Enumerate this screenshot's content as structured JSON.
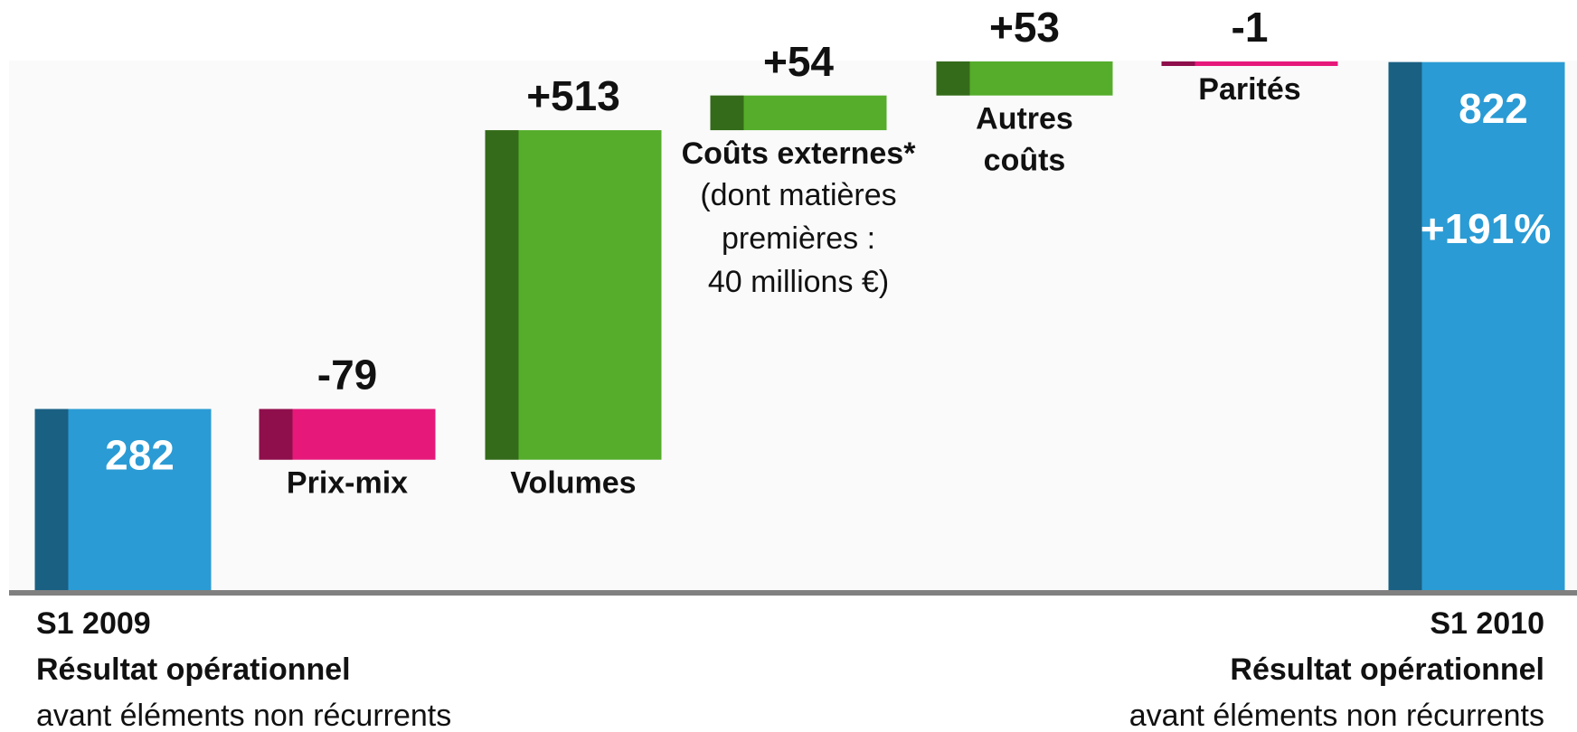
{
  "chart_data": {
    "type": "waterfall",
    "categories": [
      [
        "S1 2009",
        "Résultat opérationnel"
      ],
      [
        "Prix-mix"
      ],
      [
        "Volumes"
      ],
      [
        "Coûts externes*"
      ],
      [
        "Autres",
        "coûts"
      ],
      [
        "Parités"
      ],
      [
        "S1 2010",
        "Résultat opérationnel"
      ]
    ],
    "notes": [
      [
        "avant éléments non récurrents"
      ],
      null,
      null,
      [
        "(dont matières",
        "premières :",
        "40 millions €)"
      ],
      null,
      null,
      [
        "avant éléments non récurrents"
      ]
    ],
    "values": [
      282,
      -79,
      513,
      54,
      53,
      -1,
      822
    ],
    "value_labels": [
      "282",
      "-79",
      "+513",
      "+54",
      "+53",
      "-1",
      "822"
    ],
    "totals": [
      true,
      false,
      false,
      false,
      false,
      false,
      true
    ],
    "annotation": "+191%",
    "colors": {
      "total": "#2a9bd4",
      "increase": "#55ad2b",
      "decrease": "#e6197a"
    }
  }
}
